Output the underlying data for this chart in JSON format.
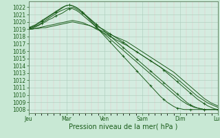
{
  "xlabel": "Pression niveau de la mer( hPa )",
  "bg_color": "#c8e8d4",
  "plot_bg_color": "#d4ece0",
  "grid_major_color": "#aacaba",
  "grid_minor_color_x": "#e8c0c0",
  "grid_minor_color_y": "#aacaba",
  "line_color": "#1a5c1a",
  "ylim": [
    1007.5,
    1022.8
  ],
  "yticks": [
    1008,
    1009,
    1010,
    1011,
    1012,
    1013,
    1014,
    1015,
    1016,
    1017,
    1018,
    1019,
    1020,
    1021,
    1022
  ],
  "day_labels": [
    "Jeu",
    "Mar",
    "Ven",
    "Sam",
    "Dim",
    "Lun"
  ],
  "n_days": 5,
  "lines": [
    {
      "vals": [
        1019.0,
        1019.1,
        1019.3,
        1019.5,
        1019.8,
        1020.0,
        1020.3,
        1020.5,
        1020.8,
        1021.0,
        1021.2,
        1021.5,
        1021.8,
        1022.0,
        1021.8,
        1021.5,
        1021.2,
        1020.8,
        1020.4,
        1020.0,
        1019.5,
        1019.2,
        1019.0,
        1018.7,
        1018.4,
        1018.1,
        1017.8,
        1017.5,
        1017.2,
        1016.9,
        1016.5,
        1016.2,
        1015.9,
        1015.6,
        1015.3,
        1015.0,
        1014.7,
        1014.4,
        1014.1,
        1013.8,
        1013.4,
        1013.0,
        1012.6,
        1012.2,
        1011.8,
        1011.4,
        1011.0,
        1010.6,
        1010.2,
        1009.8,
        1009.4,
        1009.1,
        1008.8,
        1008.5,
        1008.3,
        1008.1,
        1008.0
      ],
      "marker": true
    },
    {
      "vals": [
        1019.0,
        1019.0,
        1019.1,
        1019.2,
        1019.3,
        1019.4,
        1019.5,
        1019.6,
        1019.7,
        1019.8,
        1019.9,
        1020.0,
        1020.1,
        1020.2,
        1020.1,
        1020.0,
        1019.9,
        1019.7,
        1019.5,
        1019.3,
        1019.0,
        1018.8,
        1018.5,
        1018.3,
        1018.0,
        1017.8,
        1017.5,
        1017.3,
        1017.0,
        1016.8,
        1016.5,
        1016.2,
        1015.9,
        1015.6,
        1015.3,
        1015.0,
        1014.7,
        1014.4,
        1014.1,
        1013.8,
        1013.5,
        1013.2,
        1012.9,
        1012.6,
        1012.2,
        1011.8,
        1011.4,
        1011.0,
        1010.6,
        1010.2,
        1009.8,
        1009.5,
        1009.2,
        1008.9,
        1008.7,
        1008.5,
        1008.3
      ],
      "marker": false
    },
    {
      "vals": [
        1019.0,
        1019.0,
        1019.1,
        1019.1,
        1019.2,
        1019.2,
        1019.3,
        1019.4,
        1019.5,
        1019.6,
        1019.7,
        1019.8,
        1019.9,
        1020.0,
        1019.9,
        1019.8,
        1019.7,
        1019.6,
        1019.5,
        1019.3,
        1019.1,
        1018.9,
        1018.7,
        1018.5,
        1018.3,
        1018.1,
        1017.9,
        1017.7,
        1017.5,
        1017.3,
        1017.0,
        1016.7,
        1016.4,
        1016.1,
        1015.8,
        1015.5,
        1015.2,
        1014.9,
        1014.6,
        1014.3,
        1014.0,
        1013.7,
        1013.4,
        1013.1,
        1012.7,
        1012.3,
        1011.9,
        1011.5,
        1011.1,
        1010.7,
        1010.3,
        1009.9,
        1009.5,
        1009.2,
        1008.9,
        1008.7,
        1008.5
      ],
      "marker": false
    },
    {
      "vals": [
        1019.2,
        1019.3,
        1019.5,
        1019.8,
        1020.1,
        1020.4,
        1020.7,
        1021.0,
        1021.3,
        1021.6,
        1021.9,
        1022.2,
        1022.3,
        1022.2,
        1022.0,
        1021.7,
        1021.3,
        1020.9,
        1020.5,
        1020.1,
        1019.7,
        1019.3,
        1018.9,
        1018.5,
        1018.1,
        1017.7,
        1017.3,
        1016.9,
        1016.5,
        1016.1,
        1015.7,
        1015.3,
        1014.9,
        1014.5,
        1014.1,
        1013.7,
        1013.3,
        1012.9,
        1012.5,
        1012.1,
        1011.7,
        1011.3,
        1010.9,
        1010.5,
        1010.1,
        1009.7,
        1009.3,
        1008.9,
        1008.6,
        1008.4,
        1008.2,
        1008.1,
        1008.0,
        1008.0,
        1008.0,
        1008.0,
        1008.0
      ],
      "marker": true
    },
    {
      "vals": [
        1019.2,
        1019.4,
        1019.6,
        1019.9,
        1020.2,
        1020.5,
        1020.8,
        1021.1,
        1021.4,
        1021.7,
        1022.0,
        1022.2,
        1022.3,
        1022.2,
        1022.0,
        1021.7,
        1021.3,
        1020.8,
        1020.3,
        1019.8,
        1019.3,
        1018.8,
        1018.3,
        1017.8,
        1017.3,
        1016.8,
        1016.3,
        1015.8,
        1015.3,
        1014.8,
        1014.3,
        1013.8,
        1013.3,
        1012.8,
        1012.3,
        1011.8,
        1011.3,
        1010.8,
        1010.3,
        1009.8,
        1009.4,
        1009.0,
        1008.7,
        1008.4,
        1008.2,
        1008.1,
        1008.0,
        1008.0,
        1008.0,
        1008.0,
        1008.0,
        1008.0,
        1008.0,
        1008.0,
        1008.0,
        1008.0,
        1008.0
      ],
      "marker": true
    },
    {
      "vals": [
        1019.1,
        1019.2,
        1019.4,
        1019.6,
        1019.9,
        1020.2,
        1020.5,
        1020.8,
        1021.1,
        1021.4,
        1021.6,
        1021.8,
        1021.9,
        1021.8,
        1021.6,
        1021.3,
        1020.9,
        1020.5,
        1020.1,
        1019.7,
        1019.3,
        1018.9,
        1018.5,
        1018.1,
        1017.7,
        1017.3,
        1016.9,
        1016.5,
        1016.1,
        1015.7,
        1015.3,
        1014.9,
        1014.5,
        1014.1,
        1013.7,
        1013.3,
        1012.9,
        1012.5,
        1012.1,
        1011.7,
        1011.3,
        1010.9,
        1010.5,
        1010.1,
        1009.7,
        1009.3,
        1009.0,
        1008.7,
        1008.5,
        1008.3,
        1008.2,
        1008.1,
        1008.0,
        1008.0,
        1008.0,
        1008.0,
        1008.0
      ],
      "marker": false
    }
  ],
  "fontsize_ticks": 5.5,
  "fontsize_xlabel": 7.0,
  "tick_color": "#1a5c1a"
}
